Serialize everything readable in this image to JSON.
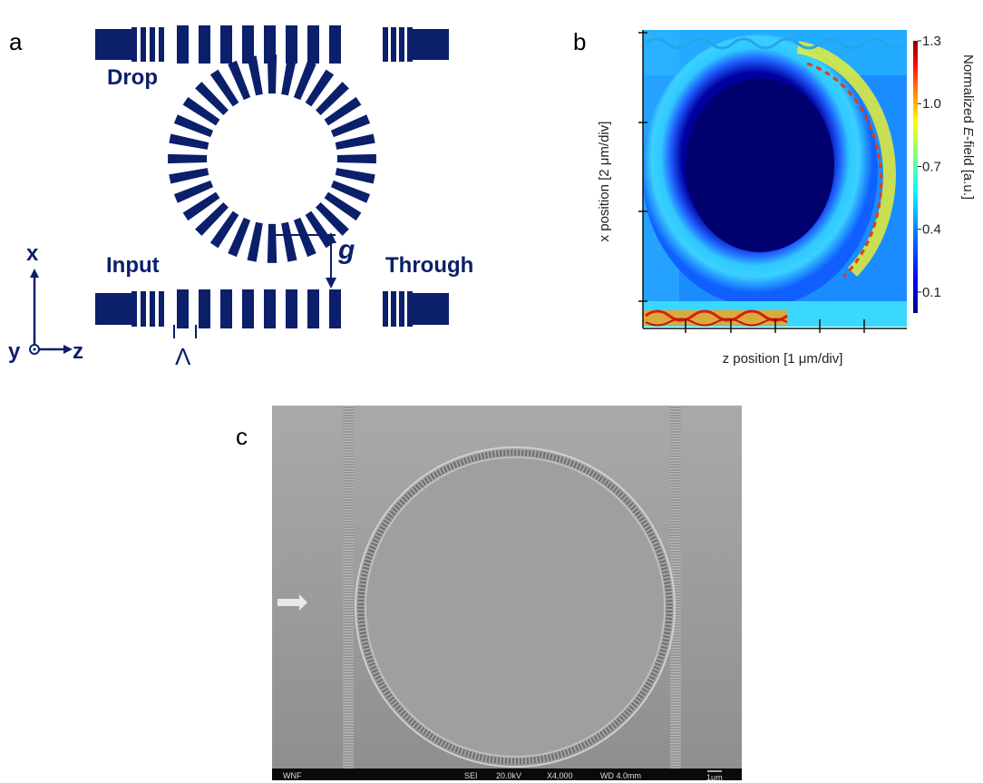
{
  "panel_a": {
    "letter": "a",
    "labels": {
      "drop": "Drop",
      "input": "Input",
      "through": "Through",
      "gap": "g",
      "period": "Λ",
      "axis_x": "x",
      "axis_y": "y",
      "axis_z": "z"
    }
  },
  "panel_b": {
    "letter": "b",
    "ylabel": "x position [2 μm/div]",
    "xlabel": "z position [1 μm/div]",
    "colorbar_title": "Normalized E-field [a.u.]",
    "colorbar_title_parts": {
      "pre": "Normalized ",
      "italic": "E",
      "post": "-field [a.u.]"
    },
    "colorbar_ticks": [
      "1.3",
      "1.0",
      "0.7",
      "0.4",
      "0.1"
    ],
    "colorbar_tick_values": [
      1.3,
      1.0,
      0.7,
      0.4,
      0.1
    ],
    "colormap": [
      "#00007f",
      "#0000ff",
      "#007fff",
      "#00ffff",
      "#7fff7f",
      "#ffff00",
      "#ff7f00",
      "#ff0000",
      "#7f0000"
    ]
  },
  "panel_c": {
    "letter": "c",
    "sem_info": {
      "left": "WNF",
      "mode": "SEI",
      "voltage": "20.0kV",
      "magnification": "X4,000",
      "wd": "WD 4.0mm",
      "scale": "1μm"
    }
  }
}
